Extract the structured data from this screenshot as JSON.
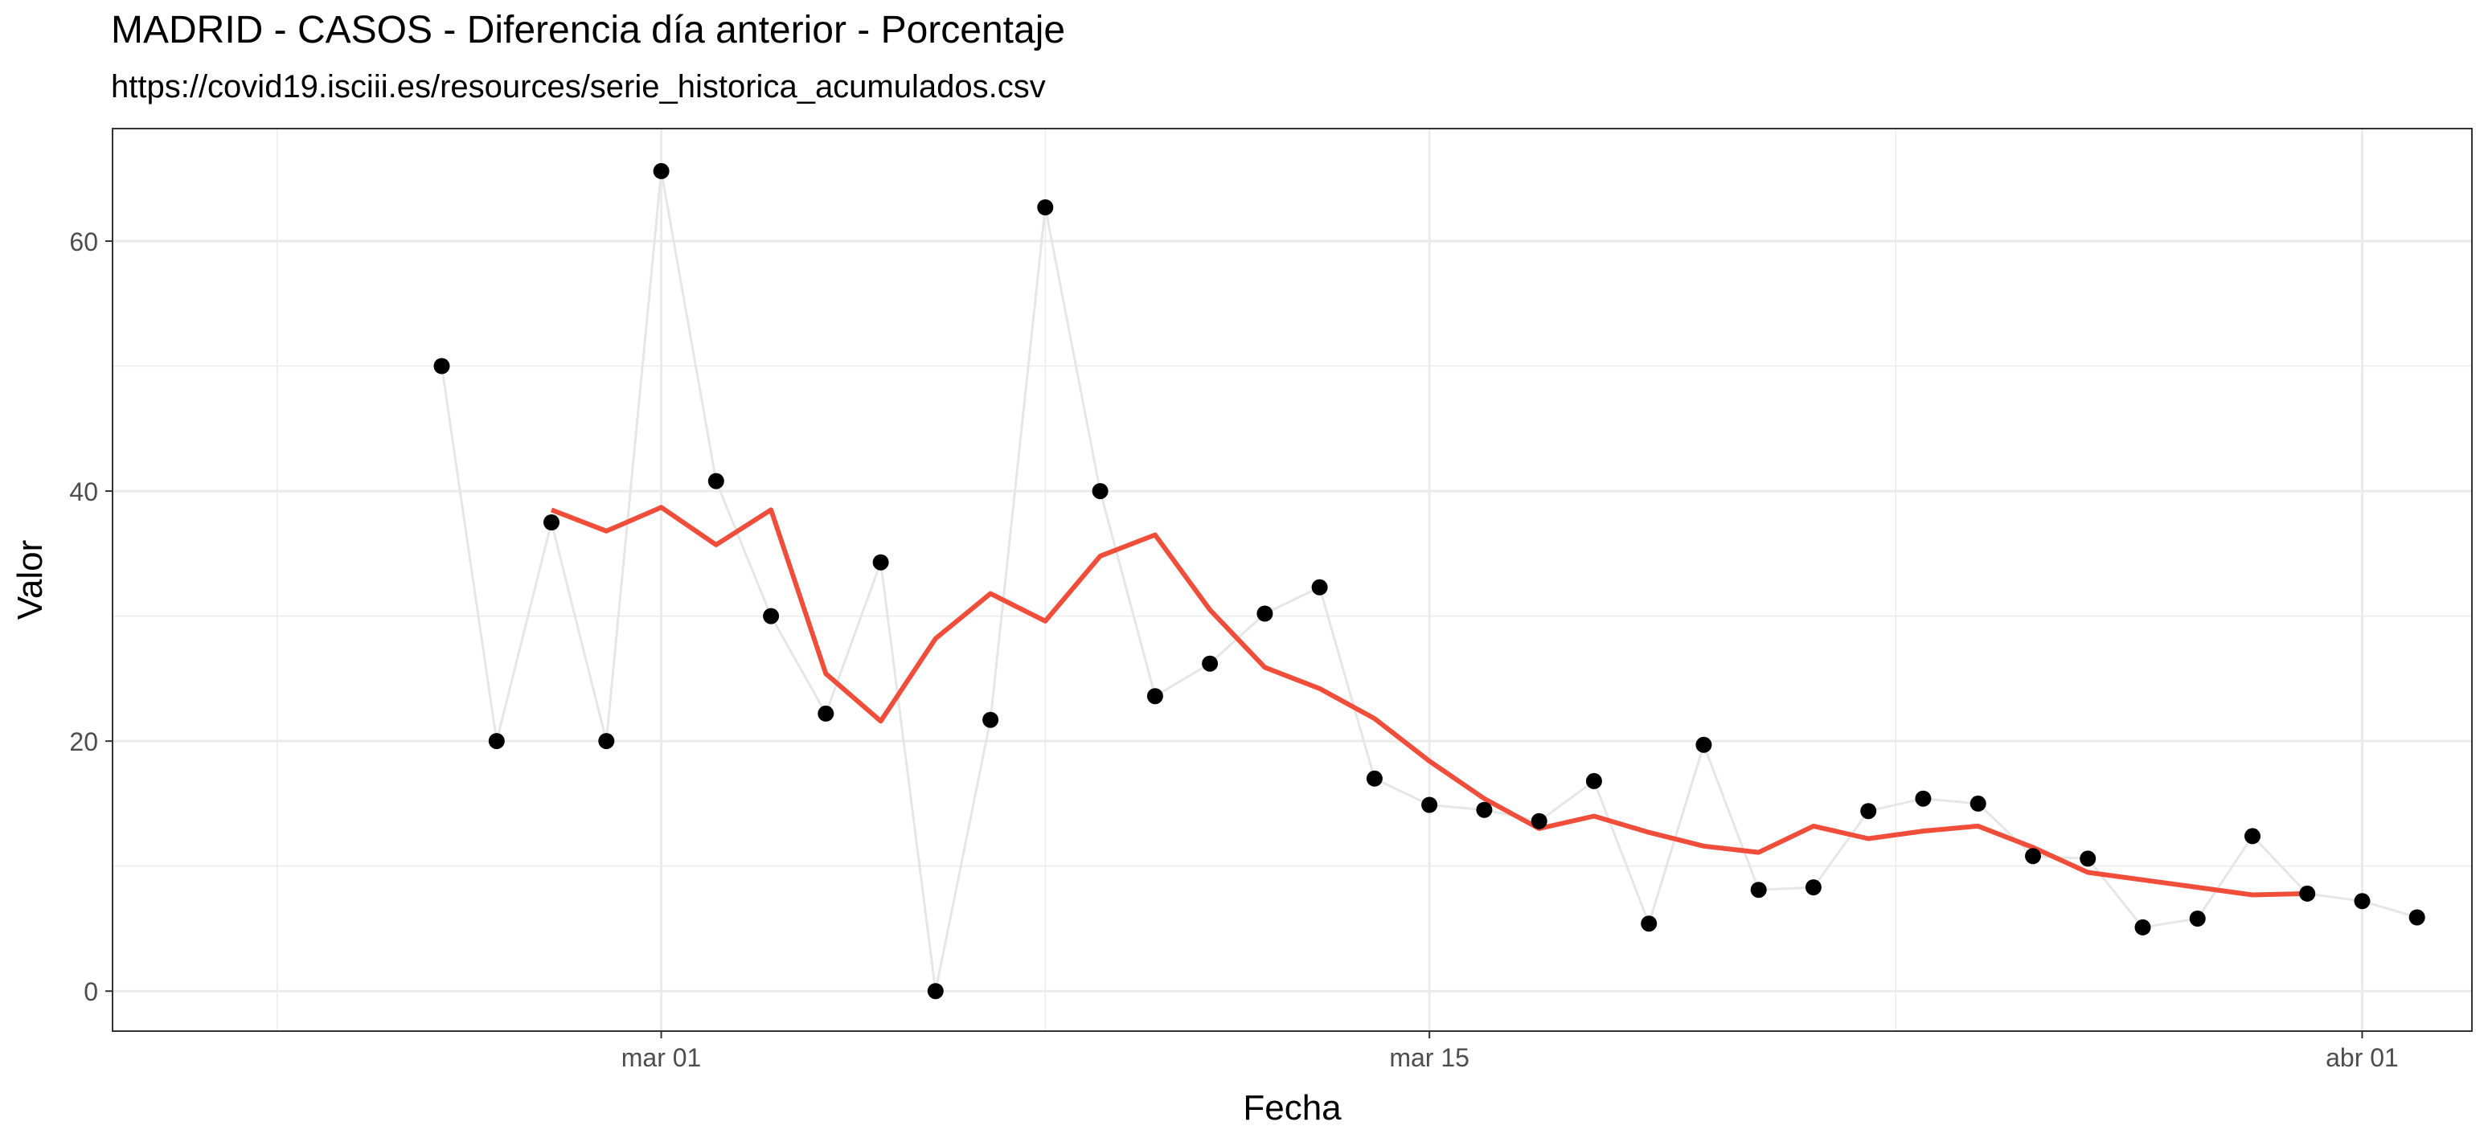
{
  "chart_data": {
    "type": "line",
    "title": "MADRID - CASOS - Diferencia día anterior - Porcentaje",
    "subtitle": "https://covid19.isciii.es/resources/serie_historica_acumulados.csv",
    "xlabel": "Fecha",
    "ylabel": "Valor",
    "x_axis_type": "date",
    "xlim": [
      "2020-02-20",
      "2020-04-03"
    ],
    "ylim": [
      -3.2,
      69
    ],
    "y_ticks": [
      0,
      20,
      40,
      60
    ],
    "x_ticks": [
      {
        "date": "2020-03-01",
        "label": "mar 01"
      },
      {
        "date": "2020-03-15",
        "label": "mar 15"
      },
      {
        "date": "2020-04-01",
        "label": "abr 01"
      }
    ],
    "grid": true,
    "legend": "none",
    "colors": {
      "points": "#000000",
      "raw_line": "#e6e6e6",
      "smooth_line": "#f04e3a",
      "grid": "#ebebeb"
    },
    "series": [
      {
        "values": [
          {
            "date": "2020-02-26",
            "y": 50.0
          },
          {
            "date": "2020-02-27",
            "y": 20.0
          },
          {
            "date": "2020-02-28",
            "y": 37.5
          },
          {
            "date": "2020-02-29",
            "y": 20.0
          },
          {
            "date": "2020-03-01",
            "y": 65.6
          },
          {
            "date": "2020-03-02",
            "y": 40.8
          },
          {
            "date": "2020-03-03",
            "y": 30.0
          },
          {
            "date": "2020-03-04",
            "y": 22.2
          },
          {
            "date": "2020-03-05",
            "y": 34.3
          },
          {
            "date": "2020-03-06",
            "y": 0.0
          },
          {
            "date": "2020-03-07",
            "y": 21.7
          },
          {
            "date": "2020-03-08",
            "y": 62.7
          },
          {
            "date": "2020-03-09",
            "y": 40.0
          },
          {
            "date": "2020-03-10",
            "y": 23.6
          },
          {
            "date": "2020-03-11",
            "y": 26.2
          },
          {
            "date": "2020-03-12",
            "y": 30.2
          },
          {
            "date": "2020-03-13",
            "y": 32.3
          },
          {
            "date": "2020-03-14",
            "y": 17.0
          },
          {
            "date": "2020-03-15",
            "y": 14.9
          },
          {
            "date": "2020-03-16",
            "y": 14.5
          },
          {
            "date": "2020-03-17",
            "y": 13.6
          },
          {
            "date": "2020-03-18",
            "y": 16.8
          },
          {
            "date": "2020-03-19",
            "y": 5.4
          },
          {
            "date": "2020-03-20",
            "y": 19.7
          },
          {
            "date": "2020-03-21",
            "y": 8.1
          },
          {
            "date": "2020-03-22",
            "y": 8.3
          },
          {
            "date": "2020-03-23",
            "y": 14.4
          },
          {
            "date": "2020-03-24",
            "y": 15.4
          },
          {
            "date": "2020-03-25",
            "y": 15.0
          },
          {
            "date": "2020-03-26",
            "y": 10.8
          },
          {
            "date": "2020-03-27",
            "y": 10.6
          },
          {
            "date": "2020-03-28",
            "y": 5.1
          },
          {
            "date": "2020-03-29",
            "y": 5.8
          },
          {
            "date": "2020-03-30",
            "y": 12.4
          },
          {
            "date": "2020-03-31",
            "y": 7.8
          },
          {
            "date": "2020-04-01",
            "y": 7.2
          },
          {
            "date": "2020-04-02",
            "y": 5.9
          }
        ]
      },
      {
        "values": [
          {
            "date": "2020-02-28",
            "y": 38.5
          },
          {
            "date": "2020-02-29",
            "y": 36.8
          },
          {
            "date": "2020-03-01",
            "y": 38.7
          },
          {
            "date": "2020-03-02",
            "y": 35.7
          },
          {
            "date": "2020-03-03",
            "y": 38.5
          },
          {
            "date": "2020-03-04",
            "y": 25.4
          },
          {
            "date": "2020-03-05",
            "y": 21.6
          },
          {
            "date": "2020-03-06",
            "y": 28.2
          },
          {
            "date": "2020-03-07",
            "y": 31.8
          },
          {
            "date": "2020-03-08",
            "y": 29.6
          },
          {
            "date": "2020-03-09",
            "y": 34.8
          },
          {
            "date": "2020-03-10",
            "y": 36.5
          },
          {
            "date": "2020-03-11",
            "y": 30.5
          },
          {
            "date": "2020-03-12",
            "y": 25.9
          },
          {
            "date": "2020-03-13",
            "y": 24.2
          },
          {
            "date": "2020-03-14",
            "y": 21.8
          },
          {
            "date": "2020-03-15",
            "y": 18.4
          },
          {
            "date": "2020-03-16",
            "y": 15.4
          },
          {
            "date": "2020-03-17",
            "y": 13.0
          },
          {
            "date": "2020-03-18",
            "y": 14.0
          },
          {
            "date": "2020-03-19",
            "y": 12.7
          },
          {
            "date": "2020-03-20",
            "y": 11.6
          },
          {
            "date": "2020-03-21",
            "y": 11.1
          },
          {
            "date": "2020-03-22",
            "y": 13.2
          },
          {
            "date": "2020-03-23",
            "y": 12.2
          },
          {
            "date": "2020-03-24",
            "y": 12.8
          },
          {
            "date": "2020-03-25",
            "y": 13.2
          },
          {
            "date": "2020-03-26",
            "y": 11.5
          },
          {
            "date": "2020-03-27",
            "y": 9.5
          },
          {
            "date": "2020-03-28",
            "y": 8.9
          },
          {
            "date": "2020-03-29",
            "y": 8.3
          },
          {
            "date": "2020-03-30",
            "y": 7.7
          },
          {
            "date": "2020-03-31",
            "y": 7.8
          }
        ]
      }
    ]
  }
}
